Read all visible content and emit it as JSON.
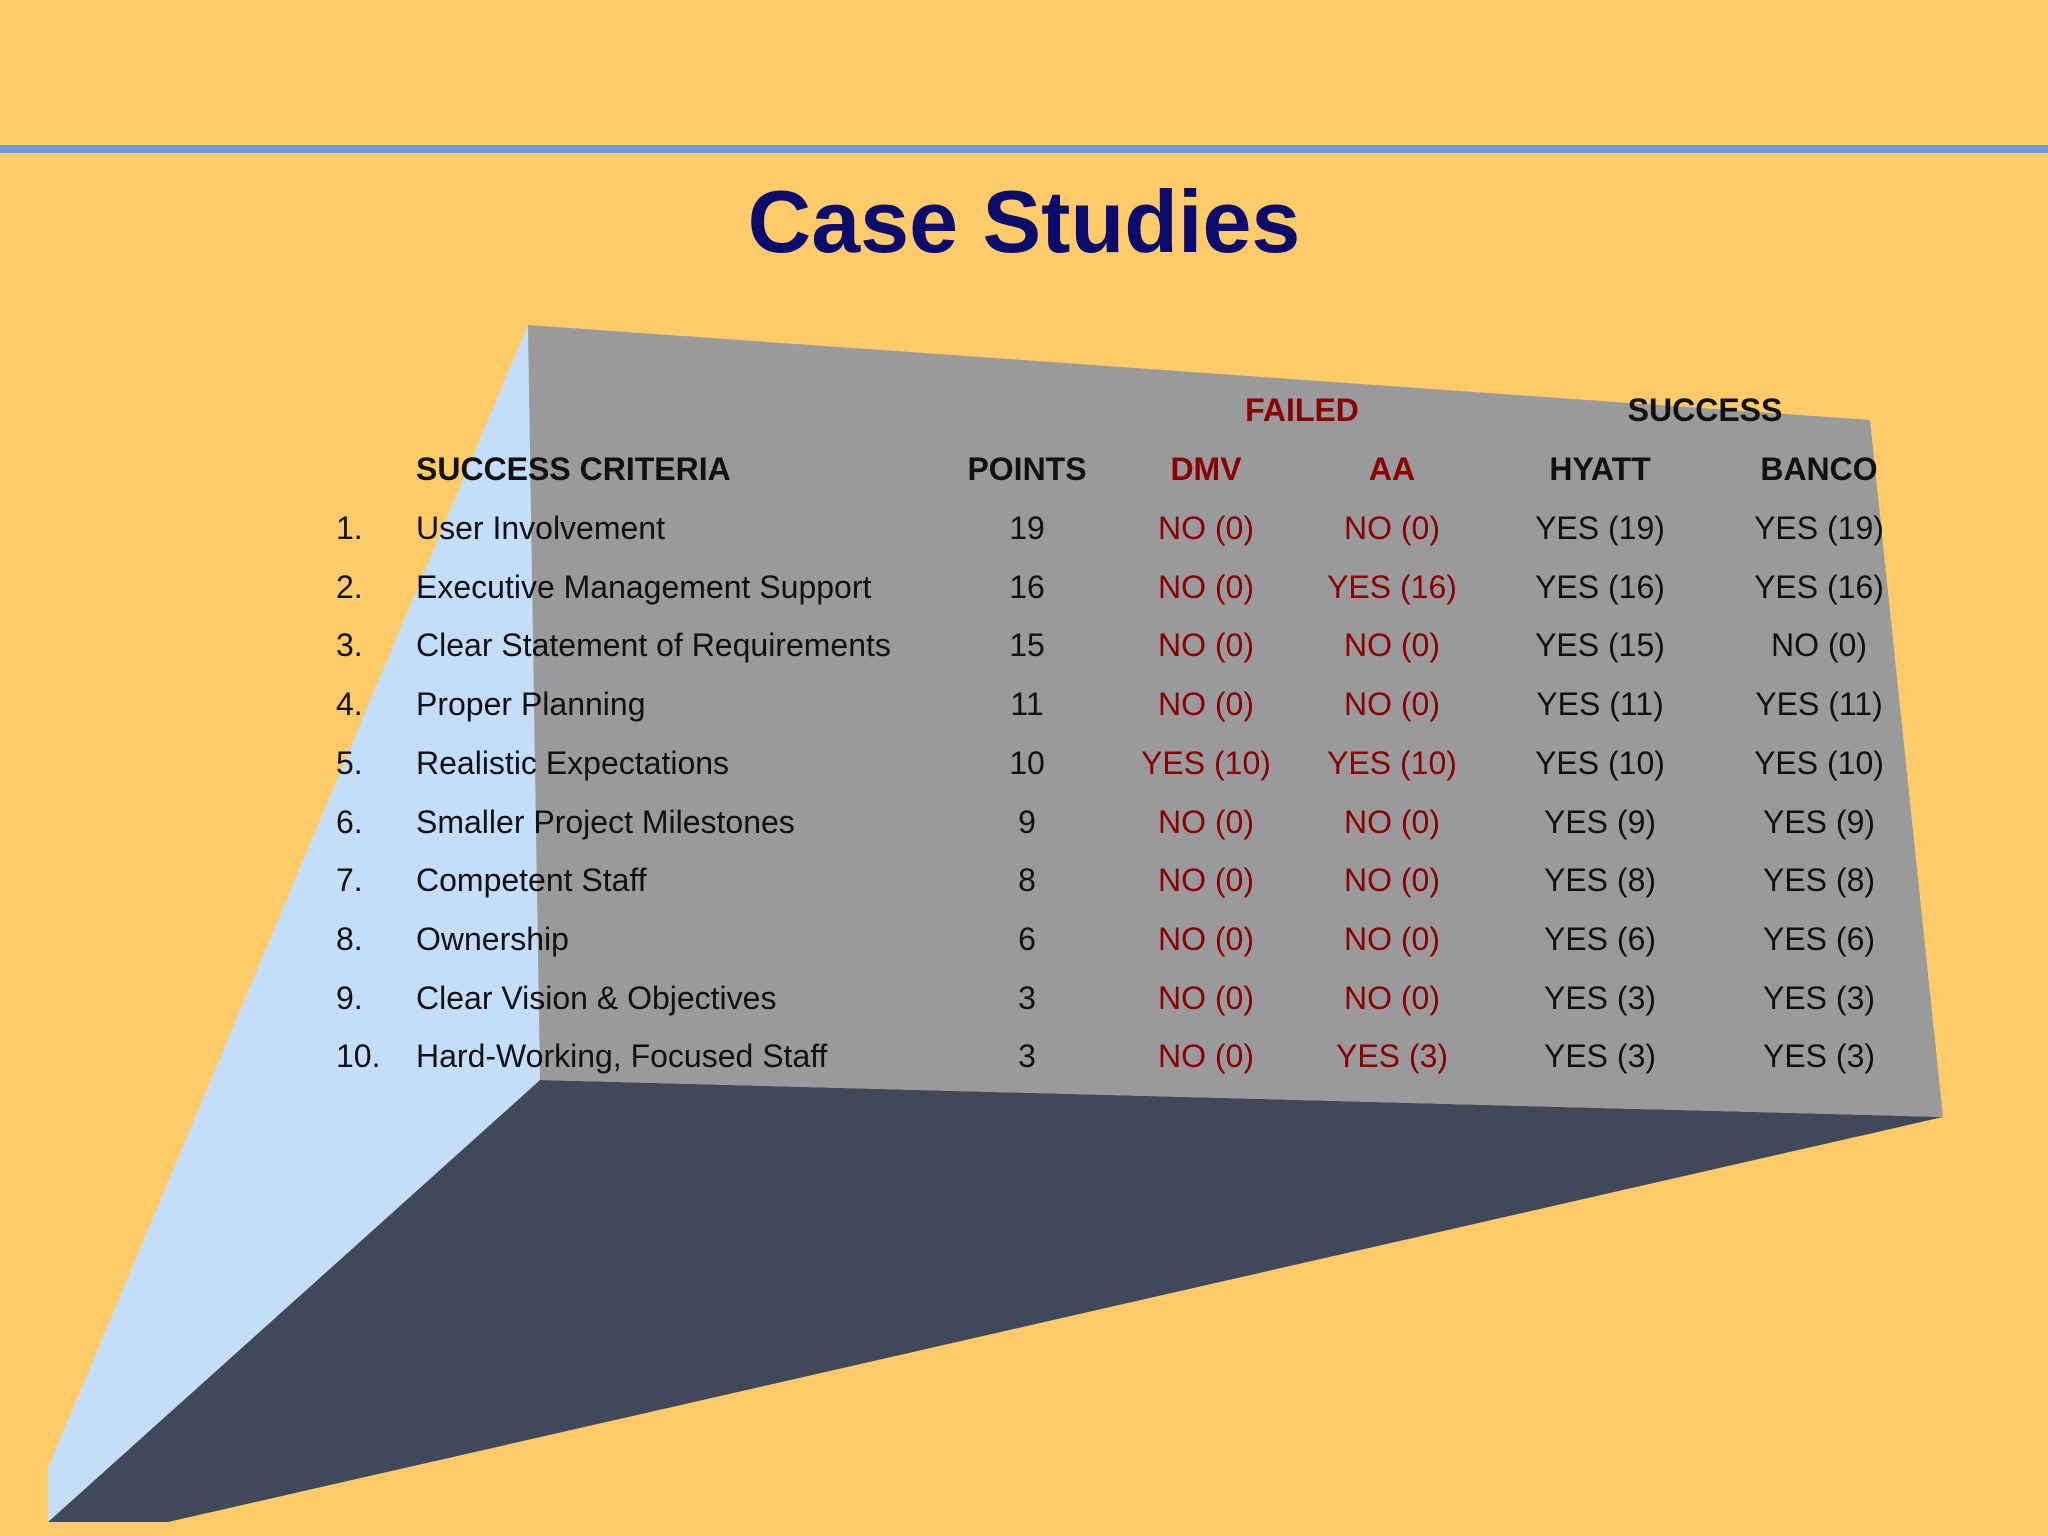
{
  "slide": {
    "title": "Case Studies"
  },
  "colors": {
    "background": "#FECB6B",
    "rule": "#6C9BD2",
    "title": "#0B0B6E",
    "failed_text": "#8B0000",
    "success_text": "#111111",
    "panel_back": "#9A9A9C",
    "panel_side": "#C3DDFB",
    "panel_floor": "#404959"
  },
  "table": {
    "group_headers": {
      "failed": "FAILED",
      "success": "SUCCESS"
    },
    "columns": {
      "criteria": "SUCCESS CRITERIA",
      "points": "POINTS",
      "dmv": "DMV",
      "aa": "AA",
      "hyatt": "HYATT",
      "banco": "BANCO"
    },
    "rows": [
      {
        "num": "1.",
        "criteria": "User Involvement",
        "points": "19",
        "dmv": "NO (0)",
        "aa": "NO (0)",
        "hyatt": "YES (19)",
        "banco": "YES (19)"
      },
      {
        "num": "2.",
        "criteria": "Executive Management Support",
        "points": "16",
        "dmv": "NO (0)",
        "aa": "YES (16)",
        "hyatt": "YES (16)",
        "banco": "YES (16)"
      },
      {
        "num": "3.",
        "criteria": "Clear Statement of Requirements",
        "points": "15",
        "dmv": "NO (0)",
        "aa": "NO (0)",
        "hyatt": "YES (15)",
        "banco": "NO (0)"
      },
      {
        "num": "4.",
        "criteria": "Proper Planning",
        "points": "11",
        "dmv": "NO (0)",
        "aa": "NO (0)",
        "hyatt": "YES (11)",
        "banco": "YES (11)"
      },
      {
        "num": "5.",
        "criteria": "Realistic Expectations",
        "points": "10",
        "dmv": "YES (10)",
        "aa": "YES (10)",
        "hyatt": "YES (10)",
        "banco": "YES (10)"
      },
      {
        "num": "6.",
        "criteria": "Smaller Project Milestones",
        "points": "9",
        "dmv": "NO (0)",
        "aa": "NO (0)",
        "hyatt": "YES (9)",
        "banco": "YES (9)"
      },
      {
        "num": "7.",
        "criteria": "Competent Staff",
        "points": "8",
        "dmv": "NO (0)",
        "aa": "NO (0)",
        "hyatt": "YES (8)",
        "banco": "YES (8)"
      },
      {
        "num": "8.",
        "criteria": "Ownership",
        "points": "6",
        "dmv": "NO (0)",
        "aa": "NO (0)",
        "hyatt": "YES (6)",
        "banco": "YES (6)"
      },
      {
        "num": "9.",
        "criteria": "Clear Vision & Objectives",
        "points": "3",
        "dmv": "NO (0)",
        "aa": "NO (0)",
        "hyatt": "YES (3)",
        "banco": "YES (3)"
      },
      {
        "num": "10.",
        "criteria": "Hard-Working, Focused Staff",
        "points": "3",
        "dmv": "NO (0)",
        "aa": "YES (3)",
        "hyatt": "YES (3)",
        "banco": "YES (3)"
      }
    ]
  }
}
